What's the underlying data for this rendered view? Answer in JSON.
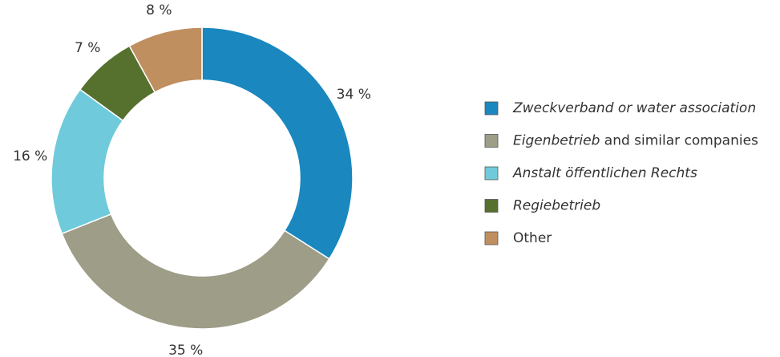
{
  "chart_data": {
    "type": "pie",
    "categories": [
      "Zweckverband or water association",
      "Eigenbetrieb and similar companies",
      "Anstalt öffentlichen Rechts",
      "Regiebetrieb",
      "Other"
    ],
    "values": [
      34,
      35,
      16,
      7,
      8
    ],
    "value_labels": [
      "34 %",
      "35 %",
      "16 %",
      "7 %",
      "8 %"
    ],
    "colors": [
      "#1a87bf",
      "#9d9d88",
      "#6fcbdb",
      "#56702e",
      "#c08f60"
    ],
    "donut": true,
    "legend": "right"
  }
}
